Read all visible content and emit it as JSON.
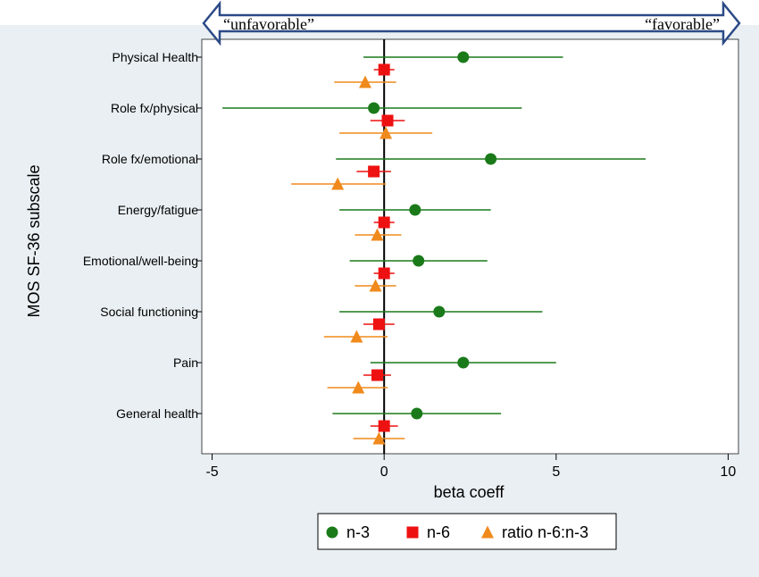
{
  "chart_data": {
    "type": "scatter",
    "subtype": "forest-plot-horizontal",
    "xlabel": "beta coeff",
    "ylabel": "MOS SF-36 subscale",
    "xlim": [
      -5.3,
      10.3
    ],
    "xticks": [
      -5,
      0,
      5,
      10
    ],
    "xtick_labels": [
      "-5",
      "0",
      "5",
      "10"
    ],
    "reference_line_x": 0,
    "grid": false,
    "legend_position": "bottom",
    "direction_arrow": {
      "left_label": "“unfavorable”",
      "right_label": "“favorable”"
    },
    "categories": [
      "Physical Health",
      "Role fx/physical",
      "Role fx/emotional",
      "Energy/fatigue",
      "Emotional/well-being",
      "Social functioning",
      "Pain",
      "General health"
    ],
    "series": [
      {
        "name": "n-3",
        "marker": "circle",
        "color": "#1a7a1a",
        "estimates": [
          2.3,
          -0.3,
          3.1,
          0.9,
          1.0,
          1.6,
          2.3,
          0.95
        ],
        "ci_low": [
          -0.6,
          -4.7,
          -1.4,
          -1.3,
          -1.0,
          -1.3,
          -0.4,
          -1.5
        ],
        "ci_high": [
          5.2,
          4.0,
          7.6,
          3.1,
          3.0,
          4.6,
          5.0,
          3.4
        ]
      },
      {
        "name": "n-6",
        "marker": "square",
        "color": "#ee1111",
        "estimates": [
          0.0,
          0.1,
          -0.3,
          0.0,
          0.0,
          -0.15,
          -0.2,
          0.0
        ],
        "ci_low": [
          -0.3,
          -0.4,
          -0.8,
          -0.3,
          -0.3,
          -0.6,
          -0.6,
          -0.4
        ],
        "ci_high": [
          0.3,
          0.6,
          0.2,
          0.3,
          0.3,
          0.3,
          0.2,
          0.4
        ]
      },
      {
        "name": "ratio n-6:n-3",
        "marker": "triangle",
        "color": "#f08a1c",
        "estimates": [
          -0.55,
          0.05,
          -1.35,
          -0.2,
          -0.25,
          -0.8,
          -0.75,
          -0.15
        ],
        "ci_low": [
          -1.45,
          -1.3,
          -2.7,
          -0.85,
          -0.85,
          -1.75,
          -1.65,
          -0.9
        ],
        "ci_high": [
          0.35,
          1.4,
          0.05,
          0.5,
          0.35,
          0.1,
          0.1,
          0.6
        ]
      }
    ]
  }
}
